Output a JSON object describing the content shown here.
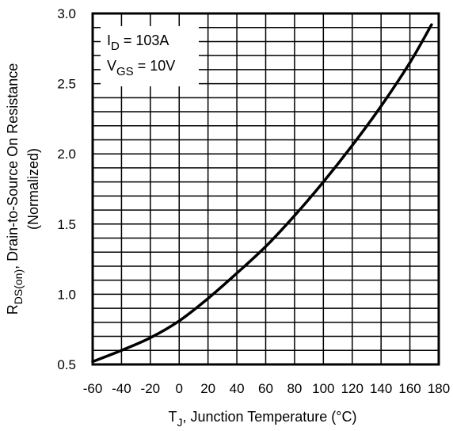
{
  "chart_data": {
    "type": "line",
    "title": "",
    "xlabel": {
      "symbol": "T",
      "subscript": "J",
      "text": ", Junction Temperature (°C)"
    },
    "ylabel": {
      "symbol": "R",
      "subscript": "DS(on)",
      "text": ", Drain-to-Source On Resistance",
      "line2": "(Normalized)"
    },
    "annotations": [
      {
        "symbol": "I",
        "subscript": "D",
        "text": " = 103A"
      },
      {
        "symbol": "V",
        "subscript": "GS",
        "text": " = 10V"
      }
    ],
    "xlim": [
      -60,
      180
    ],
    "ylim": [
      0.5,
      3.0
    ],
    "x_ticks": [
      -60,
      -40,
      -20,
      0,
      20,
      40,
      60,
      80,
      100,
      120,
      140,
      160,
      180
    ],
    "x_tick_labels": [
      "-60",
      "-40",
      "-20",
      "0",
      "20",
      "40",
      "60",
      "80",
      "100",
      "120",
      "140",
      "160",
      "180"
    ],
    "y_ticks": [
      0.5,
      1.0,
      1.5,
      2.0,
      2.5,
      3.0
    ],
    "y_tick_labels": [
      "0.5",
      "1.0",
      "1.5",
      "2.0",
      "2.5",
      "3.0"
    ],
    "grid": true,
    "series": [
      {
        "color": "#000000",
        "x": [
          -60,
          -40,
          -20,
          0,
          20,
          40,
          60,
          80,
          100,
          120,
          140,
          160,
          175
        ],
        "y": [
          0.52,
          0.6,
          0.69,
          0.81,
          0.97,
          1.15,
          1.34,
          1.56,
          1.8,
          2.06,
          2.34,
          2.65,
          2.92
        ]
      }
    ]
  }
}
